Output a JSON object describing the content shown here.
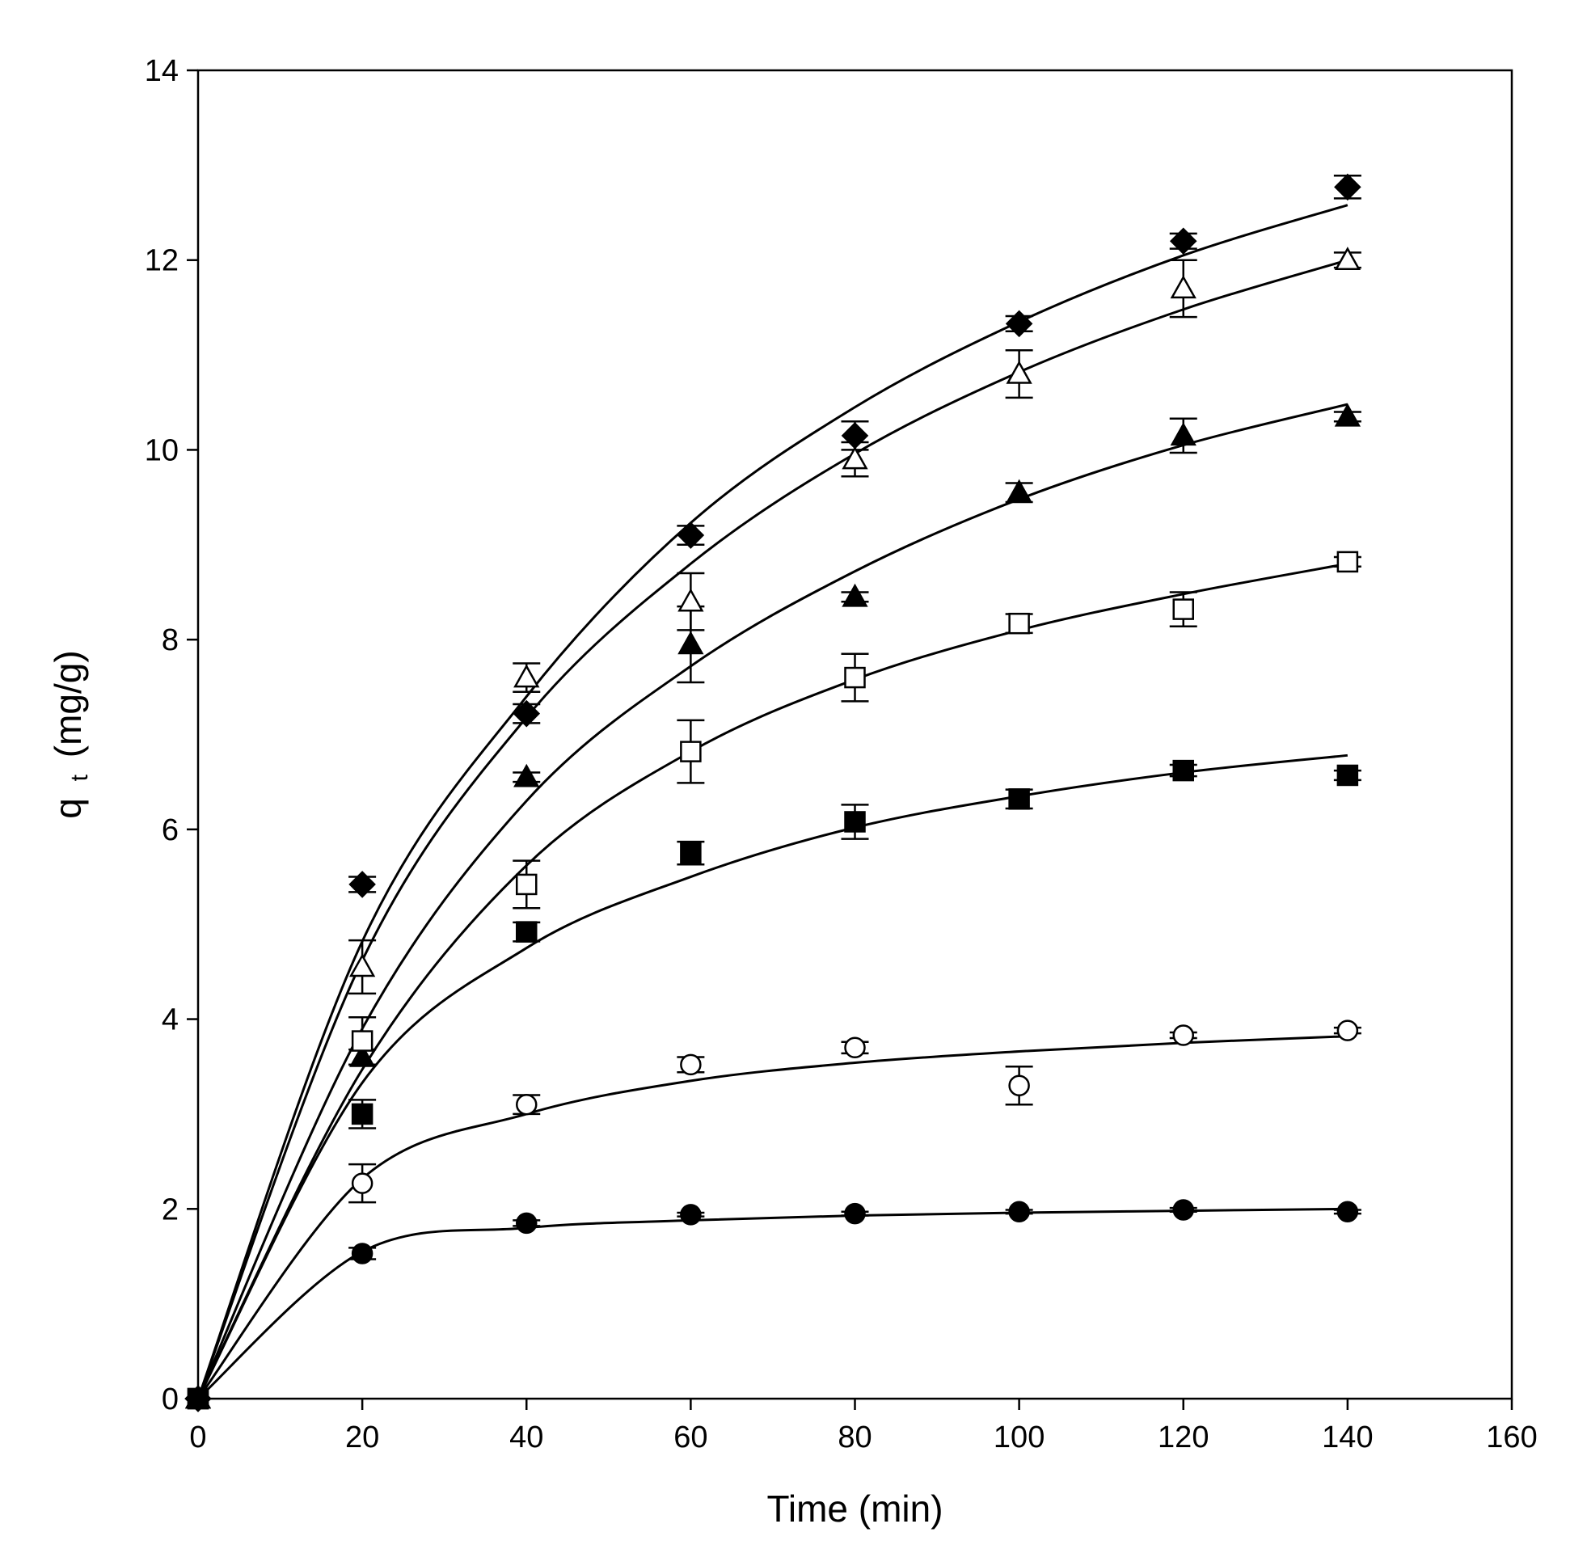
{
  "chart_data": {
    "type": "scatter",
    "title": "",
    "xlabel": "Time (min)",
    "ylabel_main": "q",
    "ylabel_sub": "t",
    "ylabel_unit": "(mg/g)",
    "xlim": [
      0,
      160
    ],
    "ylim": [
      0,
      14
    ],
    "xticks": [
      "0",
      "20",
      "40",
      "60",
      "80",
      "100",
      "120",
      "140",
      "160"
    ],
    "yticks": [
      "0",
      "2",
      "4",
      "6",
      "8",
      "10",
      "12",
      "14"
    ],
    "x": [
      0,
      20,
      40,
      60,
      80,
      100,
      120,
      140
    ],
    "series": [
      {
        "name": "filled-diamond",
        "marker": "diamond",
        "filled": true,
        "values": [
          0,
          5.42,
          7.22,
          9.1,
          10.15,
          11.33,
          12.2,
          12.77
        ],
        "errors": [
          0,
          0.08,
          0.1,
          0.1,
          0.15,
          0.08,
          0.08,
          0.12
        ],
        "fit_curve": [
          0,
          4.82,
          7.4,
          9.23,
          10.45,
          11.35,
          12.05,
          12.58
        ]
      },
      {
        "name": "open-triangle",
        "marker": "triangle",
        "filled": false,
        "values": [
          0,
          4.55,
          7.6,
          8.4,
          9.9,
          10.8,
          11.7,
          12.0
        ],
        "errors": [
          0,
          0.28,
          0.15,
          0.3,
          0.18,
          0.25,
          0.3,
          0.08
        ],
        "fit_curve": [
          0,
          4.62,
          7.18,
          8.8,
          9.96,
          10.82,
          11.48,
          12.0
        ]
      },
      {
        "name": "filled-triangle",
        "marker": "triangle",
        "filled": true,
        "values": [
          0,
          3.6,
          6.55,
          7.95,
          8.45,
          9.55,
          10.15,
          10.35
        ],
        "errors": [
          0,
          0.08,
          0.05,
          0.4,
          0.05,
          0.1,
          0.18,
          0.05
        ],
        "fit_curve": [
          0,
          3.9,
          6.3,
          7.72,
          8.72,
          9.48,
          10.05,
          10.48
        ]
      },
      {
        "name": "open-square",
        "marker": "square",
        "filled": false,
        "values": [
          0,
          3.77,
          5.42,
          6.82,
          7.6,
          8.17,
          8.32,
          8.82
        ],
        "errors": [
          0,
          0.25,
          0.25,
          0.33,
          0.25,
          0.1,
          0.18,
          0.05
        ],
        "fit_curve": [
          0,
          3.47,
          5.62,
          6.82,
          7.58,
          8.1,
          8.48,
          8.8
        ]
      },
      {
        "name": "filled-square",
        "marker": "square",
        "filled": true,
        "values": [
          0,
          3.0,
          4.92,
          5.75,
          6.08,
          6.32,
          6.62,
          6.57
        ],
        "errors": [
          0,
          0.15,
          0.1,
          0.12,
          0.18,
          0.1,
          0.06,
          0.05
        ],
        "fit_curve": [
          0,
          3.33,
          4.75,
          5.5,
          6.02,
          6.35,
          6.6,
          6.78
        ]
      },
      {
        "name": "open-circle",
        "marker": "circle",
        "filled": false,
        "values": [
          0,
          2.27,
          3.1,
          3.52,
          3.7,
          3.3,
          3.83,
          3.88
        ],
        "errors": [
          0,
          0.2,
          0.1,
          0.08,
          0.06,
          0.2,
          0.03,
          0.03
        ],
        "fit_curve": [
          0,
          2.32,
          3.0,
          3.35,
          3.54,
          3.66,
          3.75,
          3.82
        ]
      },
      {
        "name": "filled-circle",
        "marker": "circle",
        "filled": true,
        "values": [
          0,
          1.53,
          1.85,
          1.94,
          1.95,
          1.97,
          1.99,
          1.97
        ],
        "errors": [
          0,
          0.06,
          0.03,
          0.02,
          0.02,
          0.02,
          0.02,
          0.02
        ],
        "fit_curve": [
          0,
          1.55,
          1.8,
          1.88,
          1.93,
          1.96,
          1.98,
          2.0
        ]
      }
    ]
  }
}
